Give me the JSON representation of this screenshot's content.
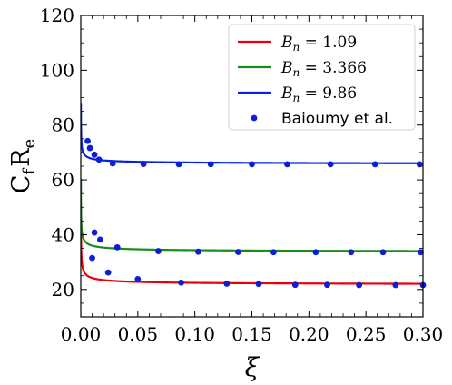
{
  "chart_data": {
    "type": "line",
    "xlabel": "ξ",
    "ylabel": "CfRe",
    "xlim": [
      0,
      0.3
    ],
    "ylim": [
      10,
      120
    ],
    "x_ticks": [
      0.0,
      0.05,
      0.1,
      0.15,
      0.2,
      0.25,
      0.3
    ],
    "x_tick_labels": [
      "0.00",
      "0.05",
      "0.10",
      "0.15",
      "0.20",
      "0.25",
      "0.30"
    ],
    "y_ticks": [
      20,
      40,
      60,
      80,
      100,
      120
    ],
    "y_tick_labels": [
      "20",
      "40",
      "60",
      "80",
      "100",
      "120"
    ],
    "legend_position": "top-right",
    "grid": false,
    "series": [
      {
        "name": "B_n = 1.09",
        "legend_var": "B",
        "legend_sub": "n",
        "legend_rest": " = 1.09",
        "color": "#e8000b",
        "asymptote": 21.6,
        "amplitude": 2.6,
        "x": [
          0.0005,
          0.001,
          0.002,
          0.003,
          0.004,
          0.005,
          0.007,
          0.01,
          0.015,
          0.02,
          0.03,
          0.04,
          0.05,
          0.07,
          0.1,
          0.13,
          0.16,
          0.2,
          0.25,
          0.3
        ],
        "y": [
          53.0,
          45.5,
          38.4,
          35.3,
          33.4,
          32.0,
          30.2,
          28.3,
          26.6,
          25.6,
          24.4,
          23.8,
          23.4,
          22.8,
          22.3,
          22.0,
          21.8,
          21.7,
          21.7,
          21.6
        ]
      },
      {
        "name": "B_n = 3.366",
        "legend_var": "B",
        "legend_sub": "n",
        "legend_rest": " = 3.366",
        "color": "#1a8c1a",
        "asymptote": 33.6,
        "amplitude": 2.4,
        "x": [
          0.0005,
          0.001,
          0.002,
          0.003,
          0.004,
          0.005,
          0.007,
          0.01,
          0.015,
          0.02,
          0.03,
          0.04,
          0.05,
          0.07,
          0.1,
          0.13,
          0.16,
          0.2,
          0.25,
          0.3
        ],
        "y": [
          63.0,
          54.5,
          47.5,
          44.6,
          42.8,
          41.4,
          39.6,
          38.0,
          36.6,
          35.8,
          35.0,
          34.6,
          34.3,
          34.0,
          33.8,
          33.7,
          33.6,
          33.6,
          33.6,
          33.6
        ]
      },
      {
        "name": "B_n = 9.86",
        "legend_var": "B",
        "legend_sub": "n",
        "legend_rest": " = 9.86",
        "color": "#0022e6",
        "asymptote": 65.7,
        "amplitude": 2.0,
        "x": [
          0.0005,
          0.001,
          0.002,
          0.003,
          0.004,
          0.005,
          0.007,
          0.01,
          0.015,
          0.02,
          0.03,
          0.04,
          0.05,
          0.07,
          0.1,
          0.13,
          0.16,
          0.2,
          0.25,
          0.3
        ],
        "y": [
          91.0,
          84.0,
          77.5,
          74.5,
          72.6,
          71.2,
          69.6,
          68.2,
          67.2,
          66.7,
          66.2,
          66.0,
          65.9,
          65.8,
          65.7,
          65.7,
          65.7,
          65.7,
          65.7,
          65.7
        ]
      }
    ],
    "reference": {
      "name": "Baioumy et al.",
      "color": "#0a1fd6",
      "points": [
        {
          "x": 0.01,
          "y": 31.5
        },
        {
          "x": 0.024,
          "y": 26.2
        },
        {
          "x": 0.05,
          "y": 23.8
        },
        {
          "x": 0.088,
          "y": 22.5
        },
        {
          "x": 0.128,
          "y": 22.1
        },
        {
          "x": 0.156,
          "y": 22.0
        },
        {
          "x": 0.188,
          "y": 21.7
        },
        {
          "x": 0.216,
          "y": 21.7
        },
        {
          "x": 0.244,
          "y": 21.6
        },
        {
          "x": 0.276,
          "y": 21.6
        },
        {
          "x": 0.3,
          "y": 21.6
        },
        {
          "x": 0.012,
          "y": 40.8
        },
        {
          "x": 0.017,
          "y": 38.2
        },
        {
          "x": 0.032,
          "y": 35.4
        },
        {
          "x": 0.068,
          "y": 34.0
        },
        {
          "x": 0.103,
          "y": 33.8
        },
        {
          "x": 0.138,
          "y": 33.7
        },
        {
          "x": 0.169,
          "y": 33.6
        },
        {
          "x": 0.206,
          "y": 33.6
        },
        {
          "x": 0.237,
          "y": 33.6
        },
        {
          "x": 0.265,
          "y": 33.6
        },
        {
          "x": 0.298,
          "y": 33.6
        },
        {
          "x": 0.006,
          "y": 74.2
        },
        {
          "x": 0.008,
          "y": 71.6
        },
        {
          "x": 0.012,
          "y": 69.2
        },
        {
          "x": 0.016,
          "y": 67.4
        },
        {
          "x": 0.028,
          "y": 66.0
        },
        {
          "x": 0.055,
          "y": 65.8
        },
        {
          "x": 0.086,
          "y": 65.7
        },
        {
          "x": 0.114,
          "y": 65.7
        },
        {
          "x": 0.15,
          "y": 65.7
        },
        {
          "x": 0.181,
          "y": 65.7
        },
        {
          "x": 0.219,
          "y": 65.7
        },
        {
          "x": 0.258,
          "y": 65.7
        },
        {
          "x": 0.297,
          "y": 65.7
        }
      ]
    }
  }
}
